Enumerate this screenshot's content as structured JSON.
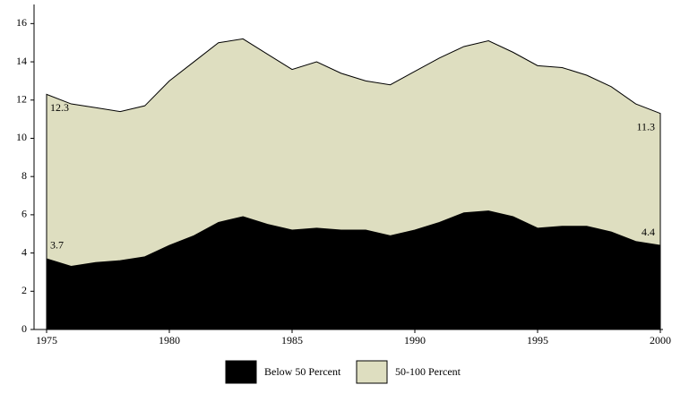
{
  "chart_data": {
    "type": "area",
    "x": [
      1975,
      1976,
      1977,
      1978,
      1979,
      1980,
      1981,
      1982,
      1983,
      1984,
      1985,
      1986,
      1987,
      1988,
      1989,
      1990,
      1991,
      1992,
      1993,
      1994,
      1995,
      1996,
      1997,
      1998,
      1999,
      2000
    ],
    "series": [
      {
        "name": "50-100 Percent",
        "color": "#dedec0",
        "values": [
          12.3,
          11.8,
          11.6,
          11.4,
          11.7,
          13.0,
          14.0,
          15.0,
          15.2,
          14.4,
          13.6,
          14.0,
          13.4,
          13.0,
          12.8,
          13.5,
          14.2,
          14.8,
          15.1,
          14.5,
          13.8,
          13.7,
          13.3,
          12.7,
          11.8,
          11.3
        ]
      },
      {
        "name": "Below 50 Percent",
        "color": "#000000",
        "values": [
          3.7,
          3.3,
          3.5,
          3.6,
          3.8,
          4.4,
          4.9,
          5.6,
          5.9,
          5.5,
          5.2,
          5.3,
          5.2,
          5.2,
          4.9,
          5.2,
          5.6,
          6.1,
          6.2,
          5.9,
          5.3,
          5.4,
          5.4,
          5.1,
          4.6,
          4.4
        ]
      }
    ],
    "xlim": [
      1975,
      2000
    ],
    "xticks": [
      1975,
      1980,
      1985,
      1990,
      1995,
      2000
    ],
    "ylim": [
      0,
      17
    ],
    "yticks": [
      0,
      2,
      4,
      6,
      8,
      10,
      12,
      14,
      16
    ]
  }
}
